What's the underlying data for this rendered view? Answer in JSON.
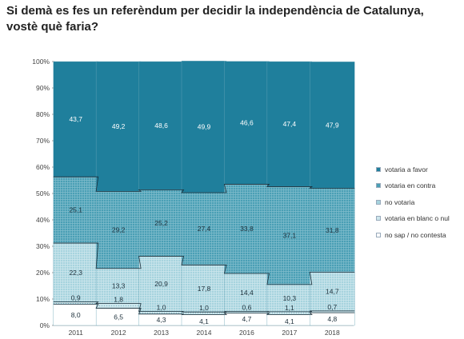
{
  "title": {
    "line1": "Si demà es fes un referèndum per decidir la independència de Catalunya,",
    "line2": "vostè què faria?"
  },
  "chart_data": {
    "type": "bar",
    "stacked": true,
    "categories": [
      "2011",
      "2012",
      "2013",
      "2014",
      "2016",
      "2017",
      "2018"
    ],
    "yticks": [
      "0%",
      "10%",
      "20%",
      "30%",
      "40%",
      "50%",
      "60%",
      "70%",
      "80%",
      "90%",
      "100%"
    ],
    "ylim": [
      0,
      100
    ],
    "series": [
      {
        "name": "no sap / no contesta",
        "values": [
          8.0,
          6.5,
          4.3,
          4.1,
          4.7,
          4.1,
          4.8
        ],
        "labels": [
          "8,0",
          "6,5",
          "4,3",
          "4,1",
          "4,7",
          "4,1",
          "4,8"
        ],
        "color": "#ffffff",
        "pattern": "none"
      },
      {
        "name": "votaria en blanc o nul",
        "values": [
          0.9,
          1.8,
          1.0,
          1.0,
          0.6,
          1.1,
          0.7
        ],
        "labels": [
          "0,9",
          "1,8",
          "1,0",
          "1,0",
          "0,6",
          "1,1",
          "0,7"
        ],
        "color": "#cde6ec",
        "pattern": "dots"
      },
      {
        "name": "no votaria",
        "values": [
          22.3,
          13.3,
          20.9,
          17.8,
          14.4,
          10.3,
          14.7
        ],
        "labels": [
          "22,3",
          "13,3",
          "20,9",
          "17,8",
          "14,4",
          "10,3",
          "14,7"
        ],
        "color": "#a6d3de",
        "pattern": "grid"
      },
      {
        "name": "votaria en contra",
        "values": [
          25.1,
          29.2,
          25.2,
          27.4,
          33.8,
          37.1,
          31.8
        ],
        "labels": [
          "25,1",
          "29,2",
          "25,2",
          "27,4",
          "33,8",
          "37,1",
          "31,8"
        ],
        "color": "#4a9fb5",
        "pattern": "grid"
      },
      {
        "name": "votaria a favor",
        "values": [
          43.7,
          49.2,
          48.6,
          49.9,
          46.6,
          47.4,
          47.9
        ],
        "labels": [
          "43,7",
          "49,2",
          "48,6",
          "49,9",
          "46,6",
          "47,4",
          "47,9"
        ],
        "color": "#1f7f9c",
        "pattern": "none"
      }
    ],
    "legend_position": "right",
    "legend_order": [
      "votaria a favor",
      "votaria en contra",
      "no votaria",
      "votaria en blanc o nul",
      "no sap / no contesta"
    ],
    "grid": false
  }
}
